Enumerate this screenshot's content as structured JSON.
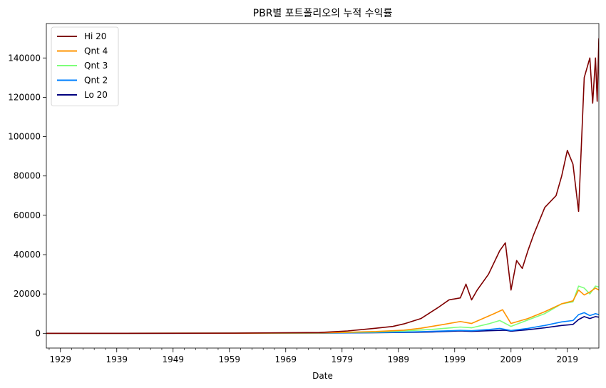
{
  "chart_data": {
    "type": "line",
    "title": "PBR별 포트폴리오의 누적 수익률",
    "xlabel": "Date",
    "ylabel": "",
    "xlim": [
      1926.5,
      2024.6
    ],
    "ylim": [
      -7500,
      157500
    ],
    "x_ticks": [
      {
        "value": 1929,
        "label": "1929"
      },
      {
        "value": 1939,
        "label": "1939"
      },
      {
        "value": 1949,
        "label": "1949"
      },
      {
        "value": 1959,
        "label": "1959"
      },
      {
        "value": 1969,
        "label": "1969"
      },
      {
        "value": 1979,
        "label": "1979"
      },
      {
        "value": 1989,
        "label": "1989"
      },
      {
        "value": 1999,
        "label": "1999"
      },
      {
        "value": 2009,
        "label": "2009"
      },
      {
        "value": 2019,
        "label": "2019"
      }
    ],
    "y_ticks": [
      {
        "value": 0,
        "label": "0"
      },
      {
        "value": 20000,
        "label": "20000"
      },
      {
        "value": 40000,
        "label": "40000"
      },
      {
        "value": 60000,
        "label": "60000"
      },
      {
        "value": 80000,
        "label": "80000"
      },
      {
        "value": 100000,
        "label": "100000"
      },
      {
        "value": 120000,
        "label": "120000"
      },
      {
        "value": 140000,
        "label": "140000"
      }
    ],
    "legend_position": "top-left",
    "grid": false,
    "series": [
      {
        "name": "Lo 20",
        "color": "#00007f",
        "x": [
          1926.5,
          1940,
          1960,
          1975,
          1985,
          1990,
          1995,
          2000,
          2002,
          2005,
          2008,
          2009,
          2012,
          2015,
          2018,
          2020,
          2021,
          2022,
          2023,
          2024,
          2024.6
        ],
        "y": [
          1,
          5,
          30,
          100,
          300,
          450,
          700,
          1200,
          1000,
          1300,
          1600,
          1100,
          1800,
          2800,
          4000,
          4500,
          7000,
          8500,
          7500,
          8500,
          8200
        ]
      },
      {
        "name": "Qnt 2",
        "color": "#0080ff",
        "x": [
          1926.5,
          1940,
          1960,
          1975,
          1985,
          1990,
          1995,
          2000,
          2002,
          2005,
          2007,
          2009,
          2012,
          2015,
          2018,
          2020,
          2021,
          2022,
          2023,
          2024,
          2024.6
        ],
        "y": [
          1,
          5,
          35,
          120,
          400,
          600,
          1000,
          1500,
          1300,
          1900,
          2500,
          1400,
          2500,
          4000,
          5800,
          6500,
          9500,
          10500,
          9000,
          10000,
          9500
        ]
      },
      {
        "name": "Qnt 3",
        "color": "#7dff7a",
        "x": [
          1926.5,
          1940,
          1960,
          1975,
          1985,
          1990,
          1995,
          2000,
          2002,
          2005,
          2007,
          2009,
          2012,
          2015,
          2018,
          2020,
          2021,
          2022,
          2023,
          2024,
          2024.6
        ],
        "y": [
          1,
          8,
          50,
          180,
          700,
          1200,
          2000,
          3200,
          2800,
          4800,
          6500,
          3500,
          6800,
          10000,
          15000,
          16000,
          24000,
          23000,
          20000,
          24000,
          23500
        ]
      },
      {
        "name": "Qnt 4",
        "color": "#ff9400",
        "x": [
          1926.5,
          1940,
          1960,
          1975,
          1985,
          1990,
          1993,
          1997,
          2000,
          2002,
          2004,
          2006,
          2007.5,
          2009,
          2012,
          2015,
          2018,
          2020,
          2021,
          2022,
          2023,
          2024,
          2024.6
        ],
        "y": [
          1,
          8,
          60,
          220,
          900,
          1600,
          2600,
          4500,
          6000,
          5000,
          7500,
          10000,
          12000,
          5000,
          7500,
          11000,
          15000,
          16500,
          22000,
          19500,
          21000,
          23000,
          22000
        ]
      },
      {
        "name": "Hi 20",
        "color": "#7f0000",
        "x": [
          1926.5,
          1940,
          1960,
          1975,
          1980,
          1985,
          1988,
          1990,
          1993,
          1996,
          1998,
          2000,
          2001,
          2002,
          2003,
          2005,
          2007,
          2008,
          2009,
          2010,
          2011,
          2012,
          2013,
          2015,
          2017,
          2018,
          2019,
          2020,
          2021,
          2022,
          2023,
          2023.5,
          2024,
          2024.3,
          2024.6
        ],
        "y": [
          1,
          10,
          80,
          400,
          1200,
          2600,
          3500,
          4800,
          7500,
          13000,
          17000,
          18000,
          25000,
          17000,
          22000,
          30000,
          42000,
          46000,
          22000,
          37000,
          33000,
          42000,
          50000,
          64000,
          70000,
          80000,
          93000,
          86000,
          62000,
          130000,
          140000,
          117000,
          140000,
          118000,
          150000
        ]
      }
    ]
  }
}
